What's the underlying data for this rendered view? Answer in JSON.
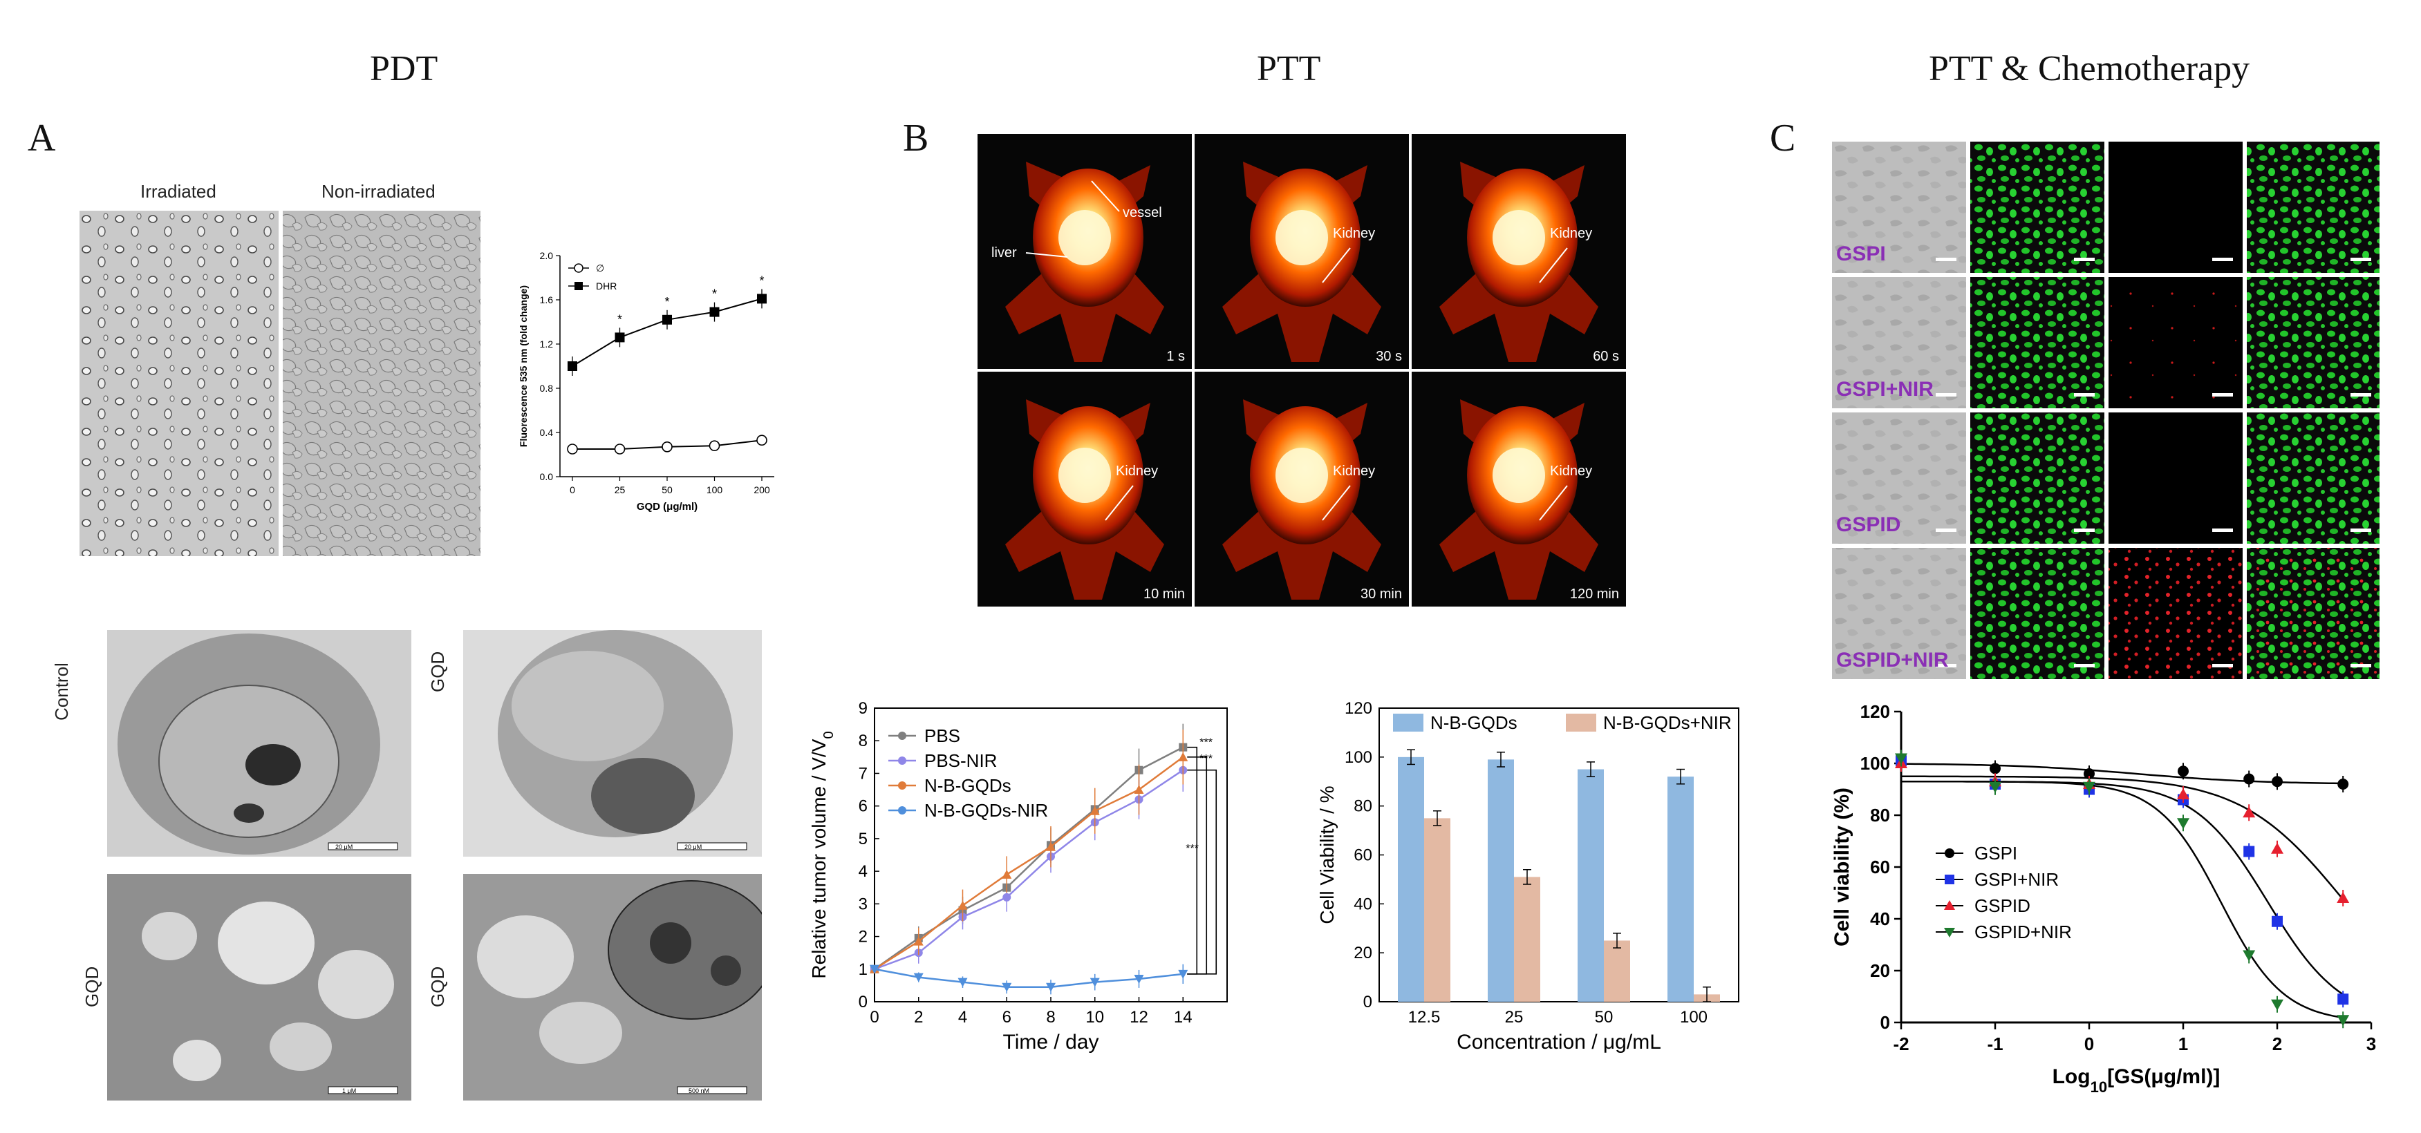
{
  "headers": {
    "pdt": "PDT",
    "ptt": "PTT",
    "ptt_chemo": "PTT & Chemotherapy"
  },
  "panel_labels": {
    "a": "A",
    "b": "B",
    "c": "C"
  },
  "panel_a": {
    "micrograph_labels": {
      "irradiated": "Irradiated",
      "non_irradiated": "Non-irradiated"
    },
    "tem_labels": {
      "control": "Control",
      "gqd1": "GQD",
      "gqd2": "GQD",
      "gqd3": "GQD"
    },
    "scale_bars": {
      "s1": "20 μM",
      "s2": "20 μM",
      "s3": "1 μM",
      "s4": "500 nM"
    }
  },
  "panel_b": {
    "imaging": {
      "labels": {
        "vessel": "vessel",
        "liver": "liver",
        "kidney": "Kidney"
      },
      "times": [
        "1 s",
        "30 s",
        "60 s",
        "10 min",
        "30 min",
        "120 min"
      ]
    },
    "sig": {
      "s1": "***",
      "s2": "***",
      "s3": "***"
    }
  },
  "panel_c": {
    "row_labels": [
      "GSPI",
      "GSPI+NIR",
      "GSPID",
      "GSPID+NIR"
    ]
  },
  "colors": {
    "pbs": "#7f7f7f",
    "pbs_nir": "#8f86e8",
    "nbgqds": "#e07b39",
    "nbgqds_nir": "#4f8fdc",
    "bar_blue": "#8fb8e0",
    "bar_tan": "#e3b9a3",
    "gspi": "#000000",
    "gspi_nir": "#1f33e6",
    "gspid": "#e6202f",
    "gspid_nir": "#1e7a2e",
    "green_cells": "#22c52a",
    "heat": "#ff7a00"
  },
  "chart_data": [
    {
      "id": "ros_fluorescence",
      "type": "line",
      "x": [
        "0",
        "25",
        "50",
        "100",
        "200"
      ],
      "series": [
        {
          "name": "∅",
          "values": [
            0.25,
            0.25,
            0.27,
            0.28,
            0.33
          ]
        },
        {
          "name": "DHR",
          "values": [
            1.0,
            1.26,
            1.42,
            1.49,
            1.61
          ]
        }
      ],
      "xlabel": "GQD (μg/ml)",
      "ylabel": "Fluorescence 535 nm (fold change)",
      "ylim": [
        0.0,
        2.0
      ],
      "yticks": [
        "0.0",
        "0.4",
        "0.8",
        "1.2",
        "1.6",
        "2.0"
      ],
      "annotations": [
        "*",
        "*",
        "*",
        "*"
      ]
    },
    {
      "id": "tumor_volume",
      "type": "line",
      "x": [
        0,
        2,
        4,
        6,
        8,
        10,
        12,
        14
      ],
      "series": [
        {
          "name": "PBS",
          "values": [
            1.0,
            1.95,
            2.8,
            3.5,
            4.8,
            5.9,
            7.1,
            7.8
          ]
        },
        {
          "name": "PBS-NIR",
          "values": [
            1.0,
            1.5,
            2.6,
            3.2,
            4.45,
            5.5,
            6.2,
            7.1
          ]
        },
        {
          "name": "N-B-GQDs",
          "values": [
            1.0,
            1.85,
            2.95,
            3.9,
            4.75,
            5.85,
            6.5,
            7.5
          ]
        },
        {
          "name": "N-B-GQDs-NIR",
          "values": [
            1.0,
            0.75,
            0.6,
            0.45,
            0.45,
            0.6,
            0.7,
            0.85
          ]
        }
      ],
      "xlabel": "Time / day",
      "ylabel": "Relative tumor volume / V/V",
      "ylabel_sub": "0",
      "xlim": [
        0,
        16
      ],
      "ylim": [
        0,
        9
      ],
      "xticks": [
        "0",
        "2",
        "4",
        "6",
        "8",
        "10",
        "12",
        "14"
      ],
      "yticks": [
        "0",
        "1",
        "2",
        "3",
        "4",
        "5",
        "6",
        "7",
        "8",
        "9"
      ]
    },
    {
      "id": "cell_viability_bar",
      "type": "bar",
      "categories": [
        "12.5",
        "25",
        "50",
        "100"
      ],
      "series": [
        {
          "name": "N-B-GQDs",
          "values": [
            100,
            99,
            95,
            92
          ]
        },
        {
          "name": "N-B-GQDs+NIR",
          "values": [
            75,
            51,
            25,
            3
          ]
        }
      ],
      "xlabel": "Concentration / μg/mL",
      "ylabel": "Cell Viability / %",
      "ylim": [
        0,
        120
      ],
      "yticks": [
        "0",
        "20",
        "40",
        "60",
        "80",
        "100",
        "120"
      ]
    },
    {
      "id": "dose_response",
      "type": "scatter",
      "series": [
        {
          "name": "GSPI",
          "x": [
            -2,
            -1,
            0,
            1,
            1.7,
            2.0,
            2.7
          ],
          "values": [
            101,
            98,
            96,
            97,
            94,
            93,
            92
          ]
        },
        {
          "name": "GSPI+NIR",
          "x": [
            -2,
            -1,
            0,
            1,
            1.7,
            2.0,
            2.7
          ],
          "values": [
            101,
            92,
            90,
            86,
            66,
            39,
            9
          ]
        },
        {
          "name": "GSPID",
          "x": [
            -2,
            -1,
            0,
            1,
            1.7,
            2.0,
            2.7
          ],
          "values": [
            100,
            93,
            92,
            88,
            81,
            67,
            48
          ]
        },
        {
          "name": "GSPID+NIR",
          "x": [
            -2,
            -1,
            0,
            1,
            1.7,
            2.0,
            2.7
          ],
          "values": [
            102,
            91,
            91,
            77,
            26,
            7,
            1
          ]
        }
      ],
      "xlabel": "Log",
      "xlabel_sub": "10",
      "xlabel_tail": "[GS(μg/ml)]",
      "ylabel": "Cell viability (%)",
      "xlim": [
        -2,
        3
      ],
      "ylim": [
        0,
        120
      ],
      "xticks": [
        "-2",
        "-1",
        "0",
        "1",
        "2",
        "3"
      ],
      "yticks": [
        "0",
        "20",
        "40",
        "60",
        "80",
        "100",
        "120"
      ]
    }
  ]
}
